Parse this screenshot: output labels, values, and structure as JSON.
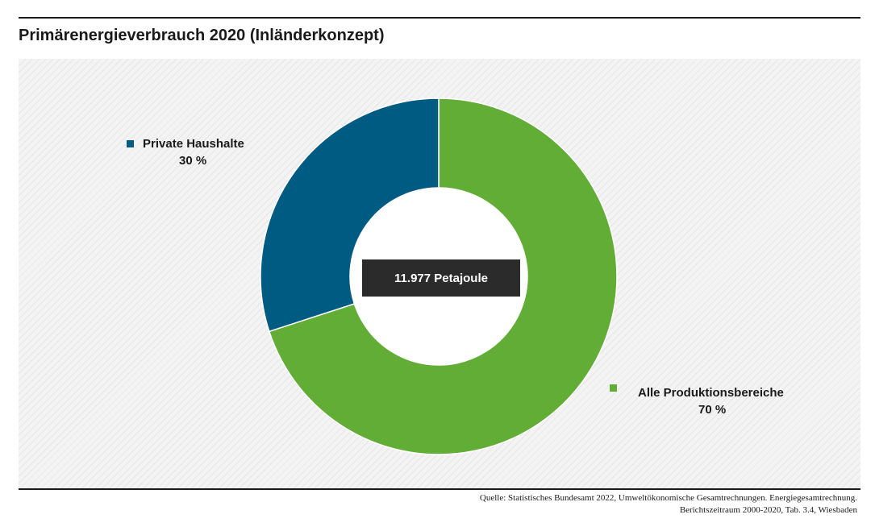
{
  "header": {
    "title": "Primärenergieverbrauch 2020 (Inländerkonzept)"
  },
  "chart_data": {
    "type": "pie",
    "title": "Primärenergieverbrauch 2020 (Inländerkonzept)",
    "center_label": "11.977 Petajoule",
    "slices": [
      {
        "name": "Alle Produktionsbereiche",
        "value": 70,
        "value_label": "70 %",
        "color": "#62ad36"
      },
      {
        "name": "Private Haushalte",
        "value": 30,
        "value_label": "30 %",
        "color": "#005b82"
      }
    ]
  },
  "footer": {
    "source_line1": "Quelle: Statistisches Bundesamt 2022, Umweltökonomische Gesamtrechnungen. Energiegesamtrechnung.",
    "source_line2": "Berichtszeitraum 2000-2020, Tab. 3.4, Wiesbaden"
  }
}
